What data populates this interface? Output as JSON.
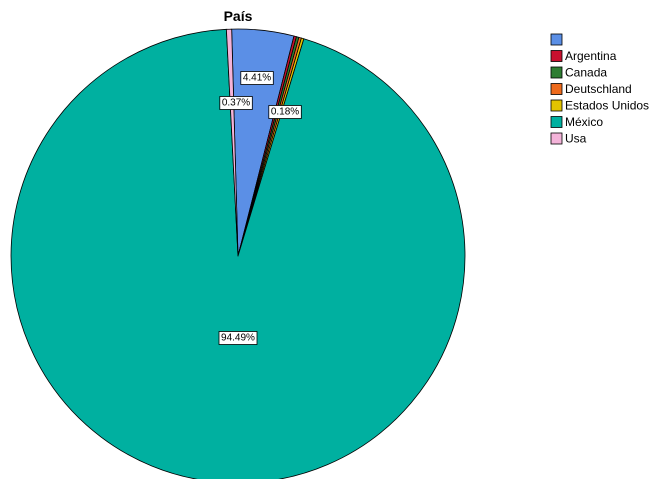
{
  "chart_data": {
    "type": "pie",
    "title": "País",
    "start_angle_deg": -1.6,
    "direction": "clockwise",
    "slices": [
      {
        "label": "",
        "value": 4.41,
        "data_label": "4.41%",
        "color": "#5b8fe6"
      },
      {
        "label": "Argentina",
        "value": 0.18,
        "data_label": "0.18%",
        "color": "#c8102e"
      },
      {
        "label": "Canada",
        "value": 0.18,
        "data_label": "",
        "color": "#2e7d32"
      },
      {
        "label": "Deutschland",
        "value": 0.18,
        "data_label": "",
        "color": "#ee6a1c"
      },
      {
        "label": "Estados Unidos",
        "value": 0.18,
        "data_label": "",
        "color": "#e3c400"
      },
      {
        "label": "México",
        "value": 94.49,
        "data_label": "94.49%",
        "color": "#00b0a0"
      },
      {
        "label": "Usa",
        "value": 0.37,
        "data_label": "0.37%",
        "color": "#f4b3d9"
      }
    ],
    "legend": {
      "position": "top-right",
      "entries": [
        "",
        "Argentina",
        "Canada",
        "Deutschland",
        "Estados Unidos",
        "México",
        "Usa"
      ]
    },
    "slice_border_color": "#000000"
  }
}
